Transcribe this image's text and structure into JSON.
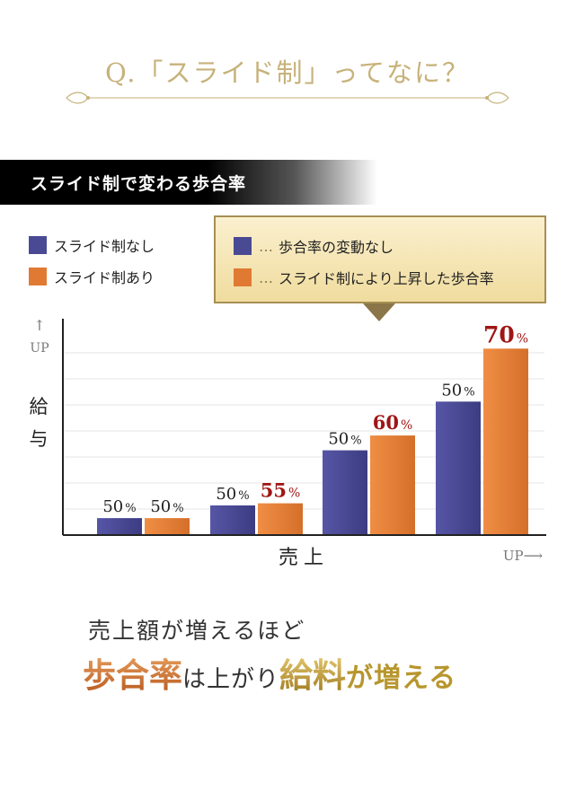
{
  "header": {
    "title": "Q.「スライド制」ってなに？"
  },
  "section": {
    "title": "スライド制で変わる歩合率"
  },
  "legend": [
    {
      "label": "スライド制なし",
      "color": "#4a4a94"
    },
    {
      "label": "スライド制あり",
      "color": "#e07a33"
    }
  ],
  "callout": {
    "items": [
      {
        "dots": "…",
        "label": "歩合率の変動なし",
        "color": "#4a4a94"
      },
      {
        "dots": "…",
        "label": "スライド制により上昇した歩合率",
        "color": "#e07a33"
      }
    ]
  },
  "chart_data": {
    "type": "bar",
    "groups": 4,
    "series": [
      {
        "name": "スライド制なし",
        "values": [
          50,
          50,
          50,
          50
        ],
        "labels": [
          "50%",
          "50%",
          "50%",
          "50%"
        ]
      },
      {
        "name": "スライド制あり",
        "values": [
          50,
          55,
          60,
          70
        ],
        "labels": [
          "50%",
          "55%",
          "60%",
          "70%"
        ]
      }
    ],
    "bar_heights_relative": [
      [
        0.08,
        0.14,
        0.4,
        0.63
      ],
      [
        0.08,
        0.15,
        0.47,
        0.88
      ]
    ],
    "ylabel": "給与",
    "y_arrow": "↑",
    "y_up": "UP",
    "xlabel": "売上",
    "x_up": "UP⟶",
    "grid": true,
    "colors": {
      "blue": "#4a4a94",
      "orange": "#e07a33",
      "highlight": "#a01515"
    }
  },
  "summary": {
    "line1": "売上額が増えるほど",
    "line2": [
      {
        "text": "歩合率",
        "style": "orange"
      },
      {
        "text": "は上がり",
        "style": "plain"
      },
      {
        "text": "給料",
        "style": "gold"
      },
      {
        "text": "が増える",
        "style": "gold"
      }
    ]
  }
}
